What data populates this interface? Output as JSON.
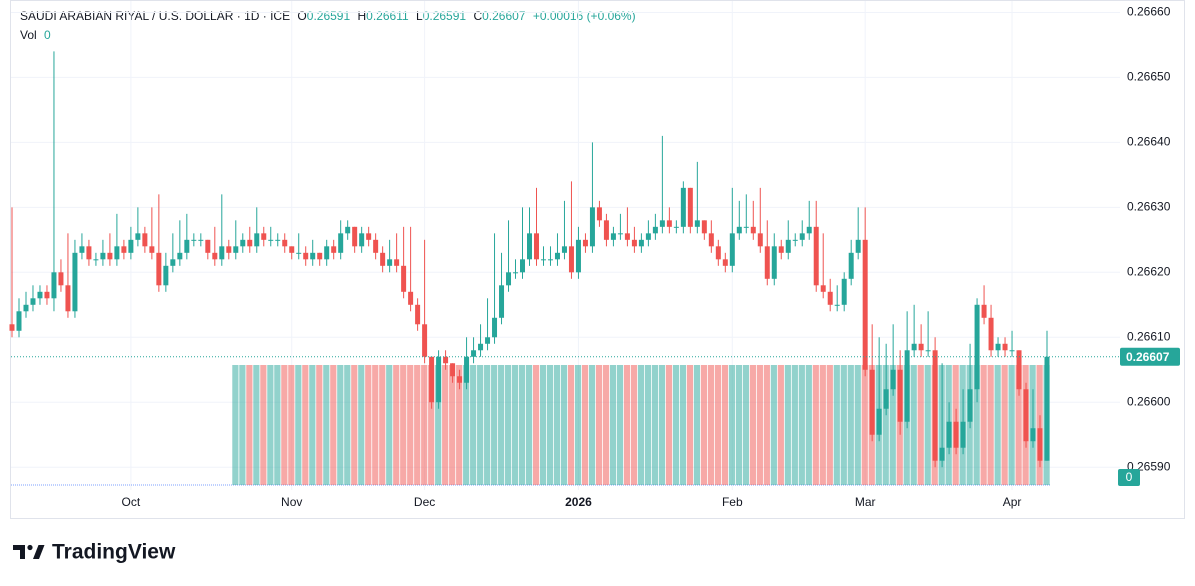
{
  "chart_data": {
    "type": "candlestick",
    "title": "SAUDI ARABIAN RIYAL / U.S. DOLLAR · 1D · ICE",
    "ohlc_labels": [
      "O",
      "H",
      "L",
      "C"
    ],
    "change": "+0.00016 (+0.06%)",
    "volume_label": "Vol",
    "brand": "TradingView",
    "up_color": "#26a69a",
    "down_color": "#ef5350",
    "ylim": [
      0.265868,
      0.266613
    ],
    "yticks": [
      {
        "value": 0.2659,
        "label": "0.26590"
      },
      {
        "value": 0.266,
        "label": "0.26600"
      },
      {
        "value": 0.2661,
        "label": "0.26610"
      },
      {
        "value": 0.2662,
        "label": "0.26620"
      },
      {
        "value": 0.2663,
        "label": "0.26630"
      },
      {
        "value": 0.2664,
        "label": "0.26640"
      },
      {
        "value": 0.2665,
        "label": "0.26650"
      },
      {
        "value": 0.2666,
        "label": "0.26660"
      }
    ],
    "volume_ticks": [
      0
    ],
    "categories": [
      null,
      null,
      null,
      null,
      null,
      null,
      null,
      null,
      null,
      null,
      null,
      null,
      null,
      null,
      null,
      null,
      null,
      "Oct",
      null,
      null,
      null,
      null,
      null,
      null,
      null,
      null,
      null,
      null,
      null,
      null,
      null,
      null,
      null,
      null,
      null,
      null,
      null,
      null,
      null,
      null,
      "Nov",
      null,
      null,
      null,
      null,
      null,
      null,
      null,
      null,
      null,
      null,
      null,
      null,
      null,
      null,
      null,
      null,
      null,
      null,
      "Dec",
      null,
      null,
      null,
      null,
      null,
      null,
      null,
      null,
      null,
      null,
      null,
      null,
      null,
      null,
      null,
      null,
      null,
      null,
      null,
      null,
      null,
      "2026",
      null,
      null,
      null,
      null,
      null,
      null,
      null,
      null,
      null,
      null,
      null,
      null,
      null,
      null,
      null,
      null,
      null,
      null,
      null,
      null,
      null,
      "Feb",
      null,
      null,
      null,
      null,
      null,
      null,
      null,
      null,
      null,
      null,
      null,
      null,
      null,
      null,
      null,
      null,
      null,
      null,
      "Mar",
      null,
      null,
      null,
      null,
      null,
      null,
      null,
      null,
      null,
      null,
      null,
      null,
      null,
      null,
      null,
      null,
      null,
      null,
      null,
      null,
      "Apr",
      null,
      null,
      null,
      null,
      null
    ],
    "ohlc": [
      [
        0.26612,
        0.2663,
        0.2661,
        0.26611
      ],
      [
        0.26611,
        0.26616,
        0.2661,
        0.26614
      ],
      [
        0.26614,
        0.26617,
        0.26613,
        0.26615
      ],
      [
        0.26615,
        0.26618,
        0.26614,
        0.26616
      ],
      [
        0.26616,
        0.26618,
        0.26615,
        0.26617
      ],
      [
        0.26617,
        0.26618,
        0.26615,
        0.26616
      ],
      [
        0.26616,
        0.26654,
        0.26614,
        0.2662
      ],
      [
        0.2662,
        0.26622,
        0.26617,
        0.26618
      ],
      [
        0.26618,
        0.26626,
        0.26613,
        0.26614
      ],
      [
        0.26614,
        0.26625,
        0.26613,
        0.26623
      ],
      [
        0.26623,
        0.26626,
        0.26622,
        0.26624
      ],
      [
        0.26624,
        0.26625,
        0.26621,
        0.26622
      ],
      [
        0.26622,
        0.26623,
        0.26621,
        0.26622
      ],
      [
        0.26622,
        0.26625,
        0.26621,
        0.26623
      ],
      [
        0.26623,
        0.26626,
        0.26621,
        0.26622
      ],
      [
        0.26622,
        0.26629,
        0.26621,
        0.26624
      ],
      [
        0.26624,
        0.26625,
        0.26622,
        0.26623
      ],
      [
        0.26623,
        0.26627,
        0.26622,
        0.26625
      ],
      [
        0.26625,
        0.2663,
        0.26624,
        0.26626
      ],
      [
        0.26626,
        0.26627,
        0.26623,
        0.26624
      ],
      [
        0.26624,
        0.2663,
        0.26622,
        0.26623
      ],
      [
        0.26623,
        0.26632,
        0.26617,
        0.26618
      ],
      [
        0.26618,
        0.26623,
        0.26617,
        0.26621
      ],
      [
        0.26621,
        0.26626,
        0.2662,
        0.26622
      ],
      [
        0.26622,
        0.26628,
        0.26621,
        0.26623
      ],
      [
        0.26623,
        0.26629,
        0.26622,
        0.26625
      ],
      [
        0.26625,
        0.26626,
        0.26624,
        0.26625
      ],
      [
        0.26625,
        0.26626,
        0.26624,
        0.26625
      ],
      [
        0.26625,
        0.26625,
        0.26622,
        0.26623
      ],
      [
        0.26623,
        0.26627,
        0.26621,
        0.26622
      ],
      [
        0.26622,
        0.26632,
        0.26621,
        0.26624
      ],
      [
        0.26624,
        0.26625,
        0.26622,
        0.26623
      ],
      [
        0.26623,
        0.26628,
        0.26622,
        0.26624
      ],
      [
        0.26624,
        0.26626,
        0.26623,
        0.26625
      ],
      [
        0.26625,
        0.26627,
        0.26623,
        0.26624
      ],
      [
        0.26624,
        0.2663,
        0.26623,
        0.26626
      ],
      [
        0.26626,
        0.26627,
        0.26624,
        0.26625
      ],
      [
        0.26625,
        0.26627,
        0.26624,
        0.26625
      ],
      [
        0.26625,
        0.26626,
        0.26624,
        0.26625
      ],
      [
        0.26625,
        0.26626,
        0.26623,
        0.26624
      ],
      [
        0.26624,
        0.26624,
        0.26622,
        0.26623
      ],
      [
        0.26623,
        0.26626,
        0.26622,
        0.26623
      ],
      [
        0.26623,
        0.26624,
        0.26621,
        0.26622
      ],
      [
        0.26622,
        0.26625,
        0.26621,
        0.26623
      ],
      [
        0.26623,
        0.26623,
        0.26621,
        0.26622
      ],
      [
        0.26622,
        0.26625,
        0.26621,
        0.26624
      ],
      [
        0.26624,
        0.26625,
        0.26622,
        0.26623
      ],
      [
        0.26623,
        0.26628,
        0.26622,
        0.26626
      ],
      [
        0.26626,
        0.26628,
        0.26625,
        0.26627
      ],
      [
        0.26627,
        0.26627,
        0.26623,
        0.26624
      ],
      [
        0.26624,
        0.26627,
        0.26623,
        0.26626
      ],
      [
        0.26626,
        0.26627,
        0.26624,
        0.26625
      ],
      [
        0.26625,
        0.26626,
        0.26622,
        0.26623
      ],
      [
        0.26623,
        0.26624,
        0.2662,
        0.26621
      ],
      [
        0.26621,
        0.26625,
        0.2662,
        0.26622
      ],
      [
        0.26622,
        0.26626,
        0.2662,
        0.26621
      ],
      [
        0.26621,
        0.26627,
        0.26616,
        0.26617
      ],
      [
        0.26617,
        0.26627,
        0.26614,
        0.26615
      ],
      [
        0.26615,
        0.26616,
        0.26611,
        0.26612
      ],
      [
        0.26612,
        0.26625,
        0.26606,
        0.26607
      ],
      [
        0.26607,
        0.26607,
        0.26599,
        0.266
      ],
      [
        0.266,
        0.26608,
        0.26599,
        0.26607
      ],
      [
        0.26607,
        0.26608,
        0.26605,
        0.26606
      ],
      [
        0.26606,
        0.26606,
        0.26603,
        0.26604
      ],
      [
        0.26604,
        0.26605,
        0.26602,
        0.26603
      ],
      [
        0.26603,
        0.2661,
        0.26602,
        0.26607
      ],
      [
        0.26607,
        0.2661,
        0.26606,
        0.26608
      ],
      [
        0.26608,
        0.26612,
        0.26607,
        0.26609
      ],
      [
        0.26609,
        0.26616,
        0.26608,
        0.2661
      ],
      [
        0.2661,
        0.26626,
        0.26609,
        0.26613
      ],
      [
        0.26613,
        0.26623,
        0.26612,
        0.26618
      ],
      [
        0.26618,
        0.26628,
        0.26617,
        0.2662
      ],
      [
        0.2662,
        0.26622,
        0.26619,
        0.2662
      ],
      [
        0.2662,
        0.2663,
        0.26619,
        0.26622
      ],
      [
        0.26622,
        0.2663,
        0.26621,
        0.26626
      ],
      [
        0.26626,
        0.26633,
        0.26621,
        0.26622
      ],
      [
        0.26622,
        0.26624,
        0.26621,
        0.26622
      ],
      [
        0.26622,
        0.26624,
        0.26621,
        0.26622
      ],
      [
        0.26622,
        0.26626,
        0.26621,
        0.26623
      ],
      [
        0.26623,
        0.26631,
        0.26622,
        0.26624
      ],
      [
        0.26624,
        0.26634,
        0.26619,
        0.2662
      ],
      [
        0.2662,
        0.26627,
        0.26619,
        0.26625
      ],
      [
        0.26625,
        0.26626,
        0.26623,
        0.26624
      ],
      [
        0.26624,
        0.2664,
        0.26623,
        0.2663
      ],
      [
        0.2663,
        0.26631,
        0.26627,
        0.26628
      ],
      [
        0.26628,
        0.26629,
        0.26624,
        0.26625
      ],
      [
        0.26625,
        0.26627,
        0.26624,
        0.26626
      ],
      [
        0.26626,
        0.26629,
        0.26625,
        0.26626
      ],
      [
        0.26626,
        0.2663,
        0.26624,
        0.26625
      ],
      [
        0.26625,
        0.26627,
        0.26623,
        0.26624
      ],
      [
        0.26624,
        0.26626,
        0.26623,
        0.26625
      ],
      [
        0.26625,
        0.26628,
        0.26624,
        0.26626
      ],
      [
        0.26626,
        0.26629,
        0.26625,
        0.26627
      ],
      [
        0.26627,
        0.26641,
        0.26626,
        0.26628
      ],
      [
        0.26628,
        0.2663,
        0.26626,
        0.26627
      ],
      [
        0.26627,
        0.26628,
        0.26626,
        0.26627
      ],
      [
        0.26627,
        0.26634,
        0.26626,
        0.26633
      ],
      [
        0.26633,
        0.26633,
        0.26626,
        0.26627
      ],
      [
        0.26627,
        0.26637,
        0.26626,
        0.26628
      ],
      [
        0.26628,
        0.26628,
        0.26625,
        0.26626
      ],
      [
        0.26626,
        0.26628,
        0.26623,
        0.26624
      ],
      [
        0.26624,
        0.26625,
        0.26621,
        0.26622
      ],
      [
        0.26622,
        0.26623,
        0.2662,
        0.26621
      ],
      [
        0.26621,
        0.26633,
        0.2662,
        0.26626
      ],
      [
        0.26626,
        0.26631,
        0.26625,
        0.26627
      ],
      [
        0.26627,
        0.26632,
        0.26626,
        0.26627
      ],
      [
        0.26627,
        0.26631,
        0.26625,
        0.26626
      ],
      [
        0.26626,
        0.26633,
        0.26623,
        0.26624
      ],
      [
        0.26624,
        0.26628,
        0.26618,
        0.26619
      ],
      [
        0.26619,
        0.26626,
        0.26618,
        0.26624
      ],
      [
        0.26624,
        0.26625,
        0.26622,
        0.26623
      ],
      [
        0.26623,
        0.26628,
        0.26622,
        0.26625
      ],
      [
        0.26625,
        0.26626,
        0.26624,
        0.26625
      ],
      [
        0.26625,
        0.26628,
        0.26624,
        0.26626
      ],
      [
        0.26626,
        0.26631,
        0.26625,
        0.26627
      ],
      [
        0.26627,
        0.26631,
        0.26617,
        0.26618
      ],
      [
        0.26618,
        0.26626,
        0.26616,
        0.26617
      ],
      [
        0.26617,
        0.26619,
        0.26614,
        0.26615
      ],
      [
        0.26615,
        0.26618,
        0.26614,
        0.26615
      ],
      [
        0.26615,
        0.2662,
        0.26614,
        0.26619
      ],
      [
        0.26619,
        0.26625,
        0.26618,
        0.26623
      ],
      [
        0.26623,
        0.2663,
        0.26622,
        0.26625
      ],
      [
        0.26625,
        0.2663,
        0.26604,
        0.26605
      ],
      [
        0.26605,
        0.26612,
        0.26594,
        0.26595
      ],
      [
        0.26595,
        0.2661,
        0.26594,
        0.26599
      ],
      [
        0.26599,
        0.26609,
        0.26598,
        0.26602
      ],
      [
        0.26602,
        0.26612,
        0.26601,
        0.26605
      ],
      [
        0.26605,
        0.26608,
        0.26595,
        0.26597
      ],
      [
        0.26597,
        0.26614,
        0.26596,
        0.26608
      ],
      [
        0.26608,
        0.26615,
        0.26607,
        0.26609
      ],
      [
        0.26609,
        0.26612,
        0.26607,
        0.26608
      ],
      [
        0.26608,
        0.26614,
        0.26607,
        0.26608
      ],
      [
        0.26608,
        0.2661,
        0.2659,
        0.26591
      ],
      [
        0.26591,
        0.26606,
        0.2659,
        0.26593
      ],
      [
        0.26593,
        0.266,
        0.26592,
        0.26597
      ],
      [
        0.26597,
        0.26599,
        0.26592,
        0.26593
      ],
      [
        0.26593,
        0.26602,
        0.26592,
        0.26597
      ],
      [
        0.26597,
        0.26609,
        0.26596,
        0.26602
      ],
      [
        0.26602,
        0.26616,
        0.266,
        0.26615
      ],
      [
        0.26615,
        0.26618,
        0.26612,
        0.26613
      ],
      [
        0.26613,
        0.26615,
        0.26607,
        0.26608
      ],
      [
        0.26608,
        0.2661,
        0.26607,
        0.26609
      ],
      [
        0.26609,
        0.2661,
        0.26607,
        0.26608
      ],
      [
        0.26608,
        0.26611,
        0.26607,
        0.26608
      ],
      [
        0.26608,
        0.26608,
        0.26601,
        0.26602
      ],
      [
        0.26602,
        0.26603,
        0.26593,
        0.26594
      ],
      [
        0.26594,
        0.26602,
        0.26593,
        0.26596
      ],
      [
        0.26596,
        0.26598,
        0.2659,
        0.26591
      ],
      [
        0.26591,
        0.26611,
        0.26591,
        0.26607
      ]
    ],
    "volume": [
      null,
      null,
      null,
      null,
      null,
      null,
      null,
      null,
      null,
      null,
      null,
      null,
      null,
      null,
      null,
      null,
      null,
      null,
      null,
      null,
      null,
      null,
      null,
      null,
      null,
      null,
      null,
      null,
      null,
      null,
      null,
      null,
      0,
      0,
      0,
      0,
      0,
      0,
      0,
      0,
      0,
      0,
      0,
      0,
      0,
      0,
      0,
      0,
      0,
      0,
      0,
      0,
      0,
      0,
      0,
      0,
      0,
      0,
      0,
      0,
      0,
      0,
      0,
      0,
      0,
      0,
      0,
      0,
      0,
      0,
      0,
      0,
      0,
      0,
      0,
      0,
      0,
      0,
      0,
      0,
      0,
      0,
      0,
      0,
      0,
      0,
      0,
      0,
      0,
      0,
      0,
      0,
      0,
      0,
      0,
      0,
      0,
      0,
      0,
      0,
      0,
      0,
      0,
      0,
      0,
      0,
      0,
      0,
      0,
      0,
      0,
      0,
      0,
      0,
      0,
      0,
      0,
      0,
      0,
      0,
      0,
      0,
      0,
      0,
      0,
      0,
      0,
      0,
      0,
      0,
      0,
      0,
      0,
      0,
      0,
      0,
      0,
      0,
      0,
      0,
      0,
      0,
      0,
      0,
      0,
      0,
      0,
      0,
      0
    ]
  }
}
